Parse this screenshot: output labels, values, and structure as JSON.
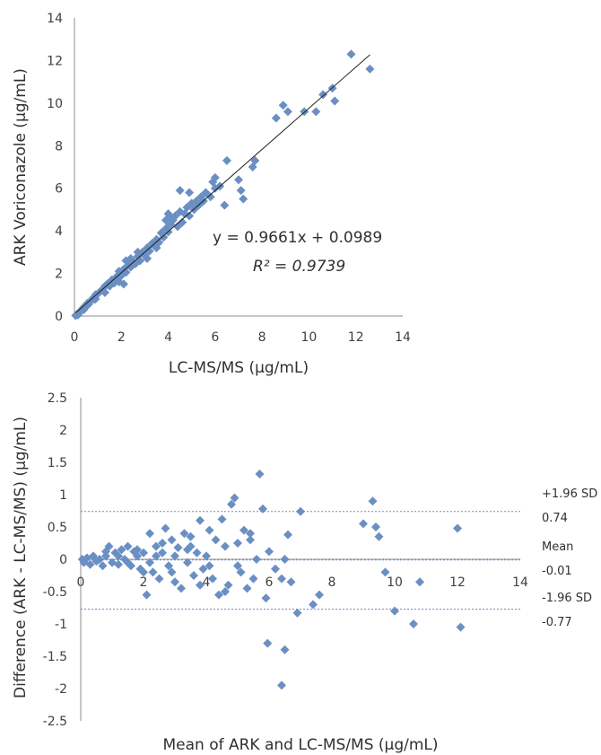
{
  "chart_data": [
    {
      "type": "scatter",
      "xlabel": "LC-MS/MS (μg/mL)",
      "ylabel": "ARK Voriconazole (μg/mL)",
      "xlim": [
        0,
        14
      ],
      "ylim": [
        0,
        14
      ],
      "x_ticks": [
        "0",
        "2",
        "4",
        "6",
        "8",
        "10",
        "12",
        "14"
      ],
      "y_ticks": [
        "0",
        "2",
        "4",
        "6",
        "8",
        "10",
        "12",
        "14"
      ],
      "grid": false,
      "marker_color": "#6a8fc3",
      "trendline": {
        "slope": 0.9661,
        "intercept": 0.0989,
        "equation_label": "y = 0.9661x + 0.0989",
        "r2_label": "R² = 0.9739"
      },
      "points": [
        [
          0.05,
          0.02
        ],
        [
          0.1,
          0.08
        ],
        [
          0.15,
          0.05
        ],
        [
          0.2,
          0.15
        ],
        [
          0.25,
          0.22
        ],
        [
          0.3,
          0.28
        ],
        [
          0.35,
          0.35
        ],
        [
          0.4,
          0.42
        ],
        [
          0.45,
          0.4
        ],
        [
          0.5,
          0.5
        ],
        [
          0.55,
          0.6
        ],
        [
          0.6,
          0.55
        ],
        [
          0.7,
          0.72
        ],
        [
          0.8,
          0.85
        ],
        [
          0.85,
          0.78
        ],
        [
          0.9,
          1.0
        ],
        [
          1.0,
          1.05
        ],
        [
          1.1,
          1.15
        ],
        [
          1.2,
          1.25
        ],
        [
          1.3,
          1.1
        ],
        [
          1.4,
          1.5
        ],
        [
          1.5,
          1.4
        ],
        [
          1.6,
          1.7
        ],
        [
          1.7,
          1.55
        ],
        [
          1.8,
          1.85
        ],
        [
          1.9,
          2.1
        ],
        [
          2.0,
          1.9
        ],
        [
          2.1,
          2.2
        ],
        [
          2.2,
          2.05
        ],
        [
          2.2,
          2.6
        ],
        [
          2.3,
          2.4
        ],
        [
          2.4,
          2.3
        ],
        [
          2.5,
          2.55
        ],
        [
          2.6,
          2.45
        ],
        [
          2.7,
          2.8
        ],
        [
          2.8,
          2.6
        ],
        [
          2.9,
          3.0
        ],
        [
          3.0,
          2.85
        ],
        [
          3.1,
          3.2
        ],
        [
          3.2,
          3.05
        ],
        [
          3.3,
          3.4
        ],
        [
          3.4,
          3.3
        ],
        [
          3.5,
          3.6
        ],
        [
          3.6,
          3.45
        ],
        [
          3.7,
          3.9
        ],
        [
          3.8,
          3.7
        ],
        [
          3.9,
          4.1
        ],
        [
          4.0,
          3.95
        ],
        [
          4.1,
          4.3
        ],
        [
          4.2,
          4.5
        ],
        [
          4.0,
          4.8
        ],
        [
          4.1,
          4.6
        ],
        [
          4.3,
          4.7
        ],
        [
          4.4,
          4.2
        ],
        [
          4.5,
          4.9
        ],
        [
          4.6,
          4.4
        ],
        [
          4.7,
          4.8
        ],
        [
          4.8,
          5.1
        ],
        [
          4.9,
          4.7
        ],
        [
          5.0,
          5.3
        ],
        [
          5.1,
          5.0
        ],
        [
          5.2,
          5.4
        ],
        [
          5.3,
          5.2
        ],
        [
          5.4,
          5.6
        ],
        [
          5.5,
          5.4
        ],
        [
          5.6,
          5.8
        ],
        [
          5.8,
          5.6
        ],
        [
          6.0,
          6.0
        ],
        [
          6.2,
          6.1
        ],
        [
          6.4,
          5.2
        ],
        [
          6.5,
          7.3
        ],
        [
          7.0,
          6.4
        ],
        [
          7.1,
          5.9
        ],
        [
          7.2,
          5.5
        ],
        [
          7.6,
          7.0
        ],
        [
          7.7,
          7.3
        ],
        [
          4.5,
          5.9
        ],
        [
          4.9,
          5.8
        ],
        [
          5.9,
          6.3
        ],
        [
          6.0,
          6.5
        ],
        [
          8.6,
          9.3
        ],
        [
          8.9,
          9.9
        ],
        [
          9.1,
          9.6
        ],
        [
          9.8,
          9.6
        ],
        [
          10.3,
          9.6
        ],
        [
          10.6,
          10.4
        ],
        [
          11.0,
          10.7
        ],
        [
          11.1,
          10.1
        ],
        [
          11.8,
          12.3
        ],
        [
          12.6,
          11.6
        ],
        [
          0.4,
          0.3
        ],
        [
          0.9,
          0.8
        ],
        [
          1.3,
          1.4
        ],
        [
          1.9,
          1.6
        ],
        [
          2.1,
          1.5
        ],
        [
          2.4,
          2.7
        ],
        [
          2.7,
          3.0
        ],
        [
          3.1,
          2.7
        ],
        [
          3.5,
          3.2
        ],
        [
          3.9,
          4.5
        ]
      ]
    },
    {
      "type": "scatter",
      "xlabel": "Mean of ARK and LC-MS/MS (μg/mL)",
      "ylabel": "Difference (ARK - LC-MS/MS) (μg/mL)",
      "xlim": [
        0,
        14
      ],
      "ylim": [
        -2.5,
        2.5
      ],
      "x_ticks": [
        "0",
        "2",
        "4",
        "6",
        "8",
        "10",
        "12",
        "14"
      ],
      "y_ticks": [
        "-2.5",
        "-2",
        "-1.5",
        "-1",
        "-0.5",
        "0",
        "0.5",
        "1",
        "1.5",
        "2",
        "2.5"
      ],
      "grid": false,
      "marker_color": "#6a8fc3",
      "reference_lines": [
        {
          "name": "+1.96 SD",
          "value": 0.74,
          "value_label": "0.74"
        },
        {
          "name": "Mean",
          "value": -0.01,
          "value_label": "-0.01"
        },
        {
          "name": "-1.96 SD",
          "value": -0.77,
          "value_label": "-0.77"
        }
      ],
      "points": [
        [
          0.05,
          0.0
        ],
        [
          0.1,
          -0.05
        ],
        [
          0.2,
          0.02
        ],
        [
          0.3,
          -0.08
        ],
        [
          0.4,
          0.05
        ],
        [
          0.5,
          -0.03
        ],
        [
          0.6,
          0.0
        ],
        [
          0.7,
          -0.1
        ],
        [
          0.8,
          0.05
        ],
        [
          0.9,
          0.2
        ],
        [
          1.0,
          -0.05
        ],
        [
          1.1,
          0.1
        ],
        [
          1.2,
          -0.08
        ],
        [
          1.3,
          0.15
        ],
        [
          1.4,
          0.0
        ],
        [
          1.5,
          0.2
        ],
        [
          1.6,
          -0.1
        ],
        [
          1.7,
          0.12
        ],
        [
          1.8,
          0.05
        ],
        [
          1.9,
          -0.15
        ],
        [
          2.0,
          0.1
        ],
        [
          2.1,
          -0.55
        ],
        [
          2.2,
          0.4
        ],
        [
          2.3,
          -0.2
        ],
        [
          2.4,
          0.2
        ],
        [
          2.5,
          -0.3
        ],
        [
          2.6,
          0.1
        ],
        [
          2.7,
          0.48
        ],
        [
          2.8,
          -0.1
        ],
        [
          2.9,
          0.3
        ],
        [
          3.0,
          -0.35
        ],
        [
          3.1,
          0.18
        ],
        [
          3.2,
          -0.45
        ],
        [
          3.3,
          0.4
        ],
        [
          3.4,
          -0.05
        ],
        [
          3.5,
          0.2
        ],
        [
          3.6,
          -0.25
        ],
        [
          3.7,
          0.1
        ],
        [
          3.8,
          0.6
        ],
        [
          3.9,
          -0.15
        ],
        [
          4.0,
          0.05
        ],
        [
          4.1,
          0.45
        ],
        [
          4.2,
          -0.3
        ],
        [
          4.3,
          0.3
        ],
        [
          4.4,
          -0.55
        ],
        [
          4.5,
          0.62
        ],
        [
          4.6,
          0.2
        ],
        [
          4.7,
          -0.4
        ],
        [
          4.8,
          0.85
        ],
        [
          4.9,
          0.95
        ],
        [
          5.0,
          0.25
        ],
        [
          5.1,
          -0.2
        ],
        [
          5.2,
          0.45
        ],
        [
          5.3,
          -0.45
        ],
        [
          5.4,
          0.4
        ],
        [
          5.5,
          -0.3
        ],
        [
          5.6,
          0.0
        ],
        [
          5.7,
          1.32
        ],
        [
          5.8,
          0.78
        ],
        [
          6.0,
          0.12
        ],
        [
          5.9,
          -0.6
        ],
        [
          6.2,
          -0.15
        ],
        [
          6.4,
          -0.3
        ],
        [
          6.5,
          0.0
        ],
        [
          6.6,
          0.38
        ],
        [
          6.7,
          -0.35
        ],
        [
          5.95,
          -1.3
        ],
        [
          6.4,
          -1.95
        ],
        [
          6.5,
          -1.4
        ],
        [
          6.9,
          -0.83
        ],
        [
          7.0,
          0.74
        ],
        [
          7.4,
          -0.7
        ],
        [
          7.6,
          -0.55
        ],
        [
          9.0,
          0.55
        ],
        [
          9.3,
          0.9
        ],
        [
          9.4,
          0.5
        ],
        [
          9.5,
          0.35
        ],
        [
          9.7,
          -0.2
        ],
        [
          10.0,
          -0.8
        ],
        [
          10.6,
          -1.0
        ],
        [
          10.8,
          -0.35
        ],
        [
          12.0,
          0.48
        ],
        [
          12.1,
          -1.05
        ],
        [
          1.2,
          0.05
        ],
        [
          1.8,
          0.15
        ],
        [
          2.2,
          -0.05
        ],
        [
          2.6,
          0.25
        ],
        [
          3.0,
          0.05
        ],
        [
          3.4,
          0.15
        ],
        [
          3.8,
          -0.4
        ],
        [
          2.4,
          0.05
        ],
        [
          2.9,
          -0.2
        ],
        [
          3.5,
          0.35
        ],
        [
          4.1,
          -0.1
        ],
        [
          4.6,
          -0.5
        ],
        [
          5.0,
          -0.1
        ],
        [
          5.4,
          0.3
        ],
        [
          1.5,
          -0.05
        ],
        [
          2.0,
          -0.2
        ],
        [
          0.8,
          0.12
        ]
      ]
    }
  ]
}
